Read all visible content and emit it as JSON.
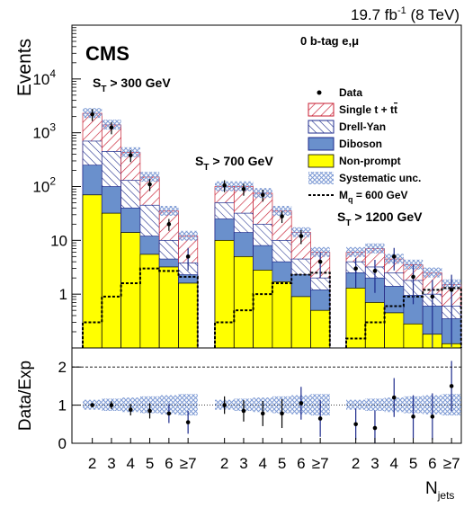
{
  "chart_data": {
    "type": "bar",
    "lumi_label": "19.7 fb",
    "lumi_sup": "-1",
    "lumi_energy": " (8 TeV)",
    "experiment": "CMS",
    "channel": "0 b-tag e,μ",
    "ylabel": "Events",
    "ratio_ylabel": "Data/Exp",
    "xlabel_main": "N",
    "xlabel_sub": "jets",
    "y_ticks": [
      {
        "base": "10",
        "exp": "4"
      },
      {
        "base": "10",
        "exp": "3"
      },
      {
        "base": "10",
        "exp": "2"
      },
      {
        "base": "10",
        "exp": ""
      },
      {
        "base": "1",
        "exp": ""
      }
    ],
    "ratio_ticks": [
      "2",
      "1",
      "0"
    ],
    "ylim": [
      0.1,
      100000
    ],
    "ratio_ylim": [
      0,
      2.5
    ],
    "categories": [
      "2",
      "3",
      "4",
      "5",
      "6",
      "≥7"
    ],
    "panels": [
      {
        "label_main": "S",
        "label_sub": "T",
        "label_rest": " > 300 GeV",
        "data": [
          2200,
          1250,
          380,
          110,
          20,
          5
        ],
        "single_top": [
          2300,
          1400,
          430,
          150,
          35,
          12
        ],
        "drell_yan": [
          700,
          450,
          130,
          45,
          10,
          3.8
        ],
        "diboson": [
          250,
          100,
          40,
          12,
          4.5,
          2.3
        ],
        "nonprompt": [
          70,
          32,
          14,
          5.5,
          3.2,
          1.6
        ],
        "signal": [
          0.3,
          0.9,
          1.6,
          3.0,
          2.7,
          2.1
        ],
        "ratio": [
          1.0,
          1.0,
          0.88,
          0.85,
          0.78,
          0.55
        ]
      },
      {
        "label_main": "S",
        "label_sub": "T",
        "label_rest": " > 700 GeV",
        "data": [
          105,
          90,
          70,
          28,
          12,
          4
        ],
        "single_top": [
          100,
          100,
          75,
          35,
          14,
          6
        ],
        "drell_yan": [
          50,
          32,
          20,
          10,
          4.5,
          2
        ],
        "diboson": [
          25,
          14,
          8,
          4,
          2.3,
          1.2
        ],
        "nonprompt": [
          10,
          5,
          2.8,
          1.7,
          0.9,
          0.5
        ],
        "signal": [
          0.3,
          0.5,
          1.0,
          1.6,
          2.3,
          2.5
        ],
        "ratio": [
          1.0,
          0.85,
          0.78,
          0.78,
          1.05,
          0.65
        ]
      },
      {
        "label_main": "S",
        "label_sub": "T",
        "label_rest": " > 1200 GeV",
        "data": [
          3,
          2.7,
          5,
          2.1,
          0.9,
          1.2
        ],
        "single_top": [
          6,
          7,
          4.5,
          3.5,
          2.5,
          1.5
        ],
        "drell_yan": [
          4,
          3.2,
          2.5,
          1.8,
          1.0,
          0.6
        ],
        "diboson": [
          2.5,
          2.0,
          1.4,
          0.95,
          0.6,
          0.35
        ],
        "nonprompt": [
          1.3,
          0.7,
          0.45,
          0.28,
          0.18,
          0.12
        ],
        "signal": [
          0.15,
          0.3,
          0.6,
          0.9,
          1.2,
          1.3
        ],
        "ratio": [
          0.5,
          0.4,
          1.2,
          0.7,
          0.7,
          1.5
        ]
      }
    ],
    "legend": [
      {
        "key": "data",
        "label": "Data"
      },
      {
        "key": "single_top",
        "label": "Single t + t",
        "label_bar": "t"
      },
      {
        "key": "drell_yan",
        "label": "Drell-Yan"
      },
      {
        "key": "diboson",
        "label": "Diboson"
      },
      {
        "key": "nonprompt",
        "label": "Non-prompt"
      },
      {
        "key": "syst",
        "label": "Systematic unc."
      },
      {
        "key": "signal",
        "label": "M",
        "label_sub": "q",
        "label_rest": " = 600 GeV"
      }
    ],
    "colors": {
      "nonprompt": "#ffff00",
      "diboson": "#6a90cc",
      "drell_yan_line": "#1c2a8c",
      "single_top_line": "#c81e32",
      "syst": "#8aa6d8",
      "data": "#000000",
      "signal": "#000000"
    },
    "grid": false,
    "legend_placement": "top-right"
  }
}
